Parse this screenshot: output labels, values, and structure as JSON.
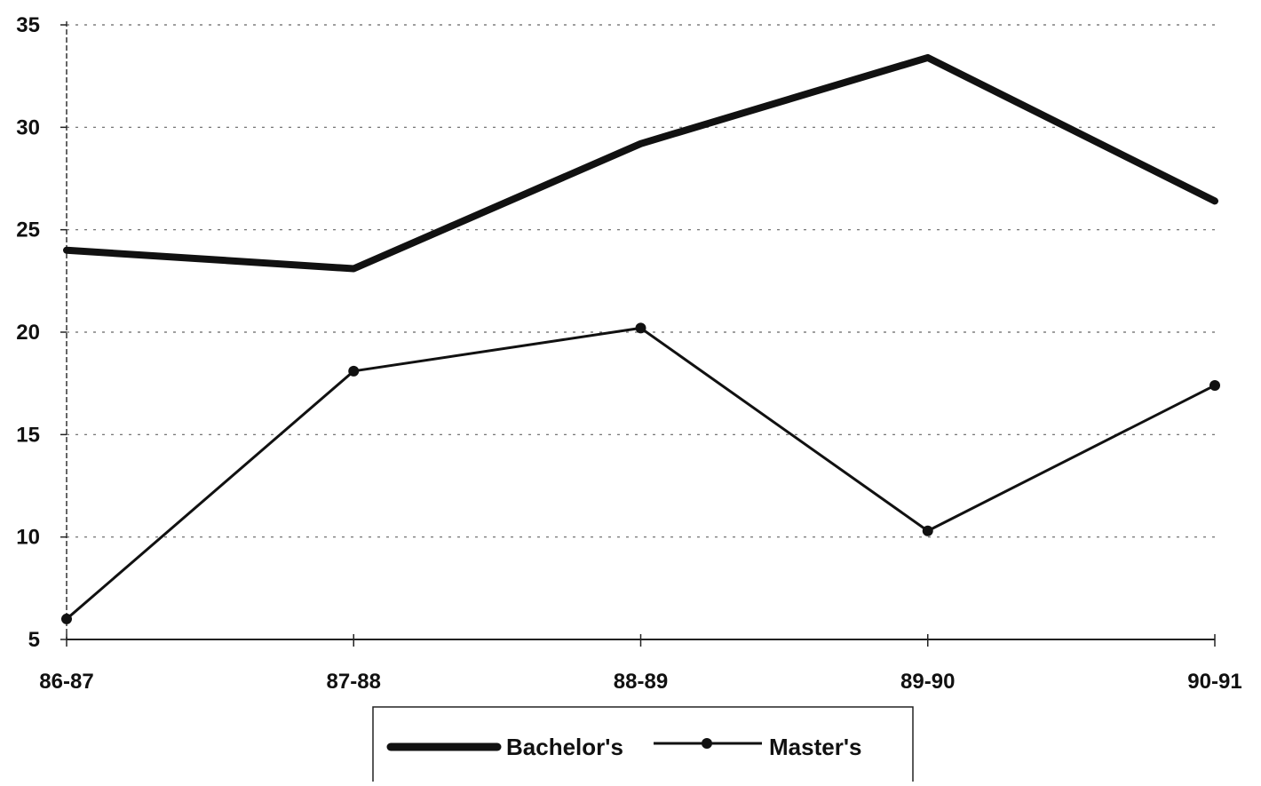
{
  "chart_data": {
    "type": "line",
    "title": "",
    "xlabel": "",
    "ylabel": "",
    "categories": [
      "86-87",
      "87-88",
      "88-89",
      "89-90",
      "90-91"
    ],
    "ylim": [
      5,
      35
    ],
    "yticks": [
      5,
      10,
      15,
      20,
      25,
      30,
      35
    ],
    "grid": true,
    "legend_position": "bottom-center",
    "series": [
      {
        "name": "Bachelor's",
        "values": [
          24,
          23.1,
          29.2,
          33.4,
          26.4
        ],
        "style": "thick-line",
        "color": "#111111"
      },
      {
        "name": "Master's",
        "values": [
          6,
          18.1,
          20.2,
          10.3,
          17.4
        ],
        "style": "line-with-dot-markers",
        "color": "#111111"
      }
    ]
  }
}
